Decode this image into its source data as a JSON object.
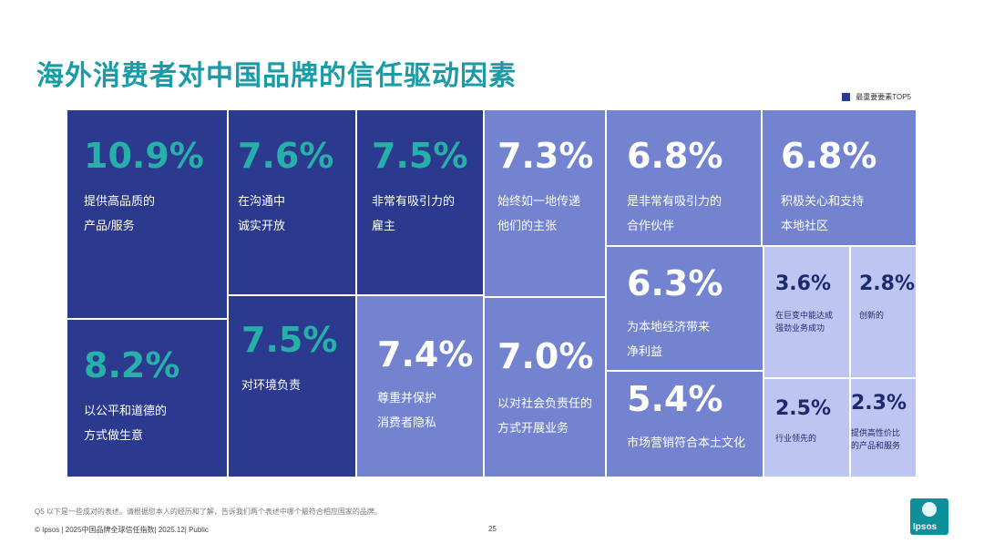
{
  "title": "海外消费者对中国品牌的信任驱动因素",
  "legend": {
    "label": "最重要要素TOP5",
    "color": "#2b3a8f"
  },
  "colors": {
    "dark": "#2b3a8f",
    "mid": "#7383d0",
    "light": "#bec5f0",
    "accent": "#27b0a8",
    "title": "#1a9ba6"
  },
  "chart_data": {
    "type": "treemap",
    "title": "海外消费者对中国品牌的信任驱动因素",
    "unit": "%",
    "items": [
      {
        "value": "10.9%",
        "label_lines": [
          "提供高品质的",
          "产品/服务"
        ],
        "top5": true
      },
      {
        "value": "8.2%",
        "label_lines": [
          "以公平和道德的",
          "方式做生意"
        ],
        "top5": false
      },
      {
        "value": "7.6%",
        "label_lines": [
          "在沟通中",
          "诚实开放"
        ],
        "top5": true
      },
      {
        "value": "7.5%",
        "label_lines": [
          "对环境负责"
        ],
        "top5": false
      },
      {
        "value": "7.5%",
        "label_lines": [
          "非常有吸引力的",
          "雇主"
        ],
        "top5": true
      },
      {
        "value": "7.4%",
        "label_lines": [
          "尊重并保护",
          "消费者隐私"
        ],
        "top5": false
      },
      {
        "value": "7.3%",
        "label_lines": [
          "始终如一地传递",
          "他们的主张"
        ],
        "top5": false
      },
      {
        "value": "7.0%",
        "label_lines": [
          "以对社会负责任的",
          "方式开展业务"
        ],
        "top5": false
      },
      {
        "value": "6.8%",
        "label_lines": [
          "是非常有吸引力的",
          "合作伙伴"
        ],
        "top5": false
      },
      {
        "value": "6.8%",
        "label_lines": [
          "积极关心和支持",
          "本地社区"
        ],
        "top5": false
      },
      {
        "value": "6.3%",
        "label_lines": [
          "为本地经济带来",
          "净利益"
        ],
        "top5": false
      },
      {
        "value": "5.4%",
        "label_lines": [
          "市场营销符合本土文化"
        ],
        "top5": false
      },
      {
        "value": "3.6%",
        "label_lines": [
          "在巨变中能达成",
          "强劲业务成功"
        ],
        "top5": false
      },
      {
        "value": "2.8%",
        "label_lines": [
          "创新的"
        ],
        "top5": false
      },
      {
        "value": "2.5%",
        "label_lines": [
          "行业领先的"
        ],
        "top5": false
      },
      {
        "value": "2.3%",
        "label_lines": [
          "提供高性价比",
          "的产品和服务"
        ],
        "top5": false
      }
    ]
  },
  "footer": {
    "note": "Q5 以下是一些成对的表述。请根据您本人的经历和了解，告诉我们两个表述中哪个最符合相应国家的品牌。",
    "copyright": "© Ipsos | 2025中国品牌全球信任指数| 2025.12| Public",
    "page": "25",
    "logo": "Ipsos"
  }
}
